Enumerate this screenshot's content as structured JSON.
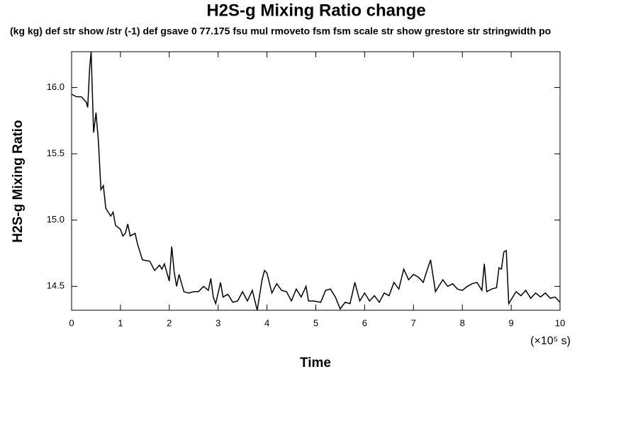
{
  "chart_data": {
    "type": "line",
    "title": "H2S-g Mixing Ratio change",
    "subtitle": "(kg kg) def str show /str (-1) def gsave 0 77.175 fsu mul rmoveto fsm fsm scale str show grestore str stringwidth po",
    "y_label": "H2S-g Mixing Ratio",
    "x_label": "Time",
    "x_unit": "(×10⁵ s)",
    "xlim": [
      0,
      10
    ],
    "xticks": [
      0,
      1,
      2,
      3,
      4,
      5,
      6,
      7,
      8,
      9,
      10
    ],
    "ylim": [
      14.32,
      16.27
    ],
    "yticks": [
      {
        "value": 14.5,
        "label": "14.5"
      },
      {
        "value": 15.0,
        "label": "15.0"
      },
      {
        "value": 15.5,
        "label": "15.5"
      },
      {
        "value": 16.0,
        "label": "16.0"
      }
    ],
    "color": "#000000",
    "x": [
      0,
      0.1,
      0.2,
      0.3,
      0.33,
      0.37,
      0.4,
      0.45,
      0.5,
      0.55,
      0.6,
      0.65,
      0.7,
      0.8,
      0.85,
      0.9,
      1.0,
      1.05,
      1.1,
      1.15,
      1.2,
      1.3,
      1.35,
      1.45,
      1.6,
      1.7,
      1.75,
      1.8,
      1.85,
      1.9,
      2.0,
      2.05,
      2.1,
      2.15,
      2.2,
      2.3,
      2.4,
      2.5,
      2.6,
      2.7,
      2.8,
      2.85,
      2.9,
      2.95,
      3.05,
      3.1,
      3.2,
      3.3,
      3.4,
      3.5,
      3.6,
      3.7,
      3.8,
      3.9,
      3.95,
      4.0,
      4.1,
      4.2,
      4.3,
      4.4,
      4.5,
      4.6,
      4.7,
      4.8,
      4.85,
      4.95,
      5.1,
      5.2,
      5.3,
      5.4,
      5.5,
      5.6,
      5.7,
      5.8,
      5.9,
      6.0,
      6.1,
      6.2,
      6.3,
      6.4,
      6.5,
      6.6,
      6.7,
      6.8,
      6.9,
      7.0,
      7.1,
      7.2,
      7.25,
      7.35,
      7.45,
      7.6,
      7.7,
      7.8,
      7.9,
      8.0,
      8.1,
      8.2,
      8.3,
      8.4,
      8.45,
      8.5,
      8.6,
      8.7,
      8.75,
      8.8,
      8.85,
      8.9,
      8.95,
      9.1,
      9.2,
      9.3,
      9.4,
      9.5,
      9.6,
      9.7,
      9.8,
      9.9,
      10.0
    ],
    "values": [
      15.95,
      15.93,
      15.93,
      15.89,
      15.85,
      16.15,
      16.27,
      15.66,
      15.81,
      15.59,
      15.23,
      15.26,
      15.09,
      15.03,
      15.06,
      14.96,
      14.93,
      14.88,
      14.9,
      14.97,
      14.88,
      14.9,
      14.82,
      14.7,
      14.69,
      14.62,
      14.64,
      14.66,
      14.63,
      14.67,
      14.54,
      14.8,
      14.61,
      14.5,
      14.59,
      14.46,
      14.45,
      14.46,
      14.46,
      14.5,
      14.47,
      14.56,
      14.42,
      14.37,
      14.53,
      14.42,
      14.44,
      14.38,
      14.39,
      14.46,
      14.39,
      14.47,
      14.32,
      14.55,
      14.62,
      14.6,
      14.45,
      14.52,
      14.47,
      14.46,
      14.39,
      14.48,
      14.42,
      14.5,
      14.39,
      14.39,
      14.38,
      14.47,
      14.48,
      14.42,
      14.33,
      14.38,
      14.37,
      14.53,
      14.39,
      14.45,
      14.39,
      14.43,
      14.38,
      14.45,
      14.43,
      14.53,
      14.48,
      14.63,
      14.55,
      14.59,
      14.57,
      14.53,
      14.59,
      14.7,
      14.46,
      14.55,
      14.5,
      14.52,
      14.48,
      14.47,
      14.5,
      14.52,
      14.53,
      14.47,
      14.67,
      14.46,
      14.48,
      14.49,
      14.64,
      14.63,
      14.76,
      14.77,
      14.37,
      14.46,
      14.43,
      14.47,
      14.41,
      14.45,
      14.42,
      14.45,
      14.41,
      14.42,
      14.38
    ]
  }
}
